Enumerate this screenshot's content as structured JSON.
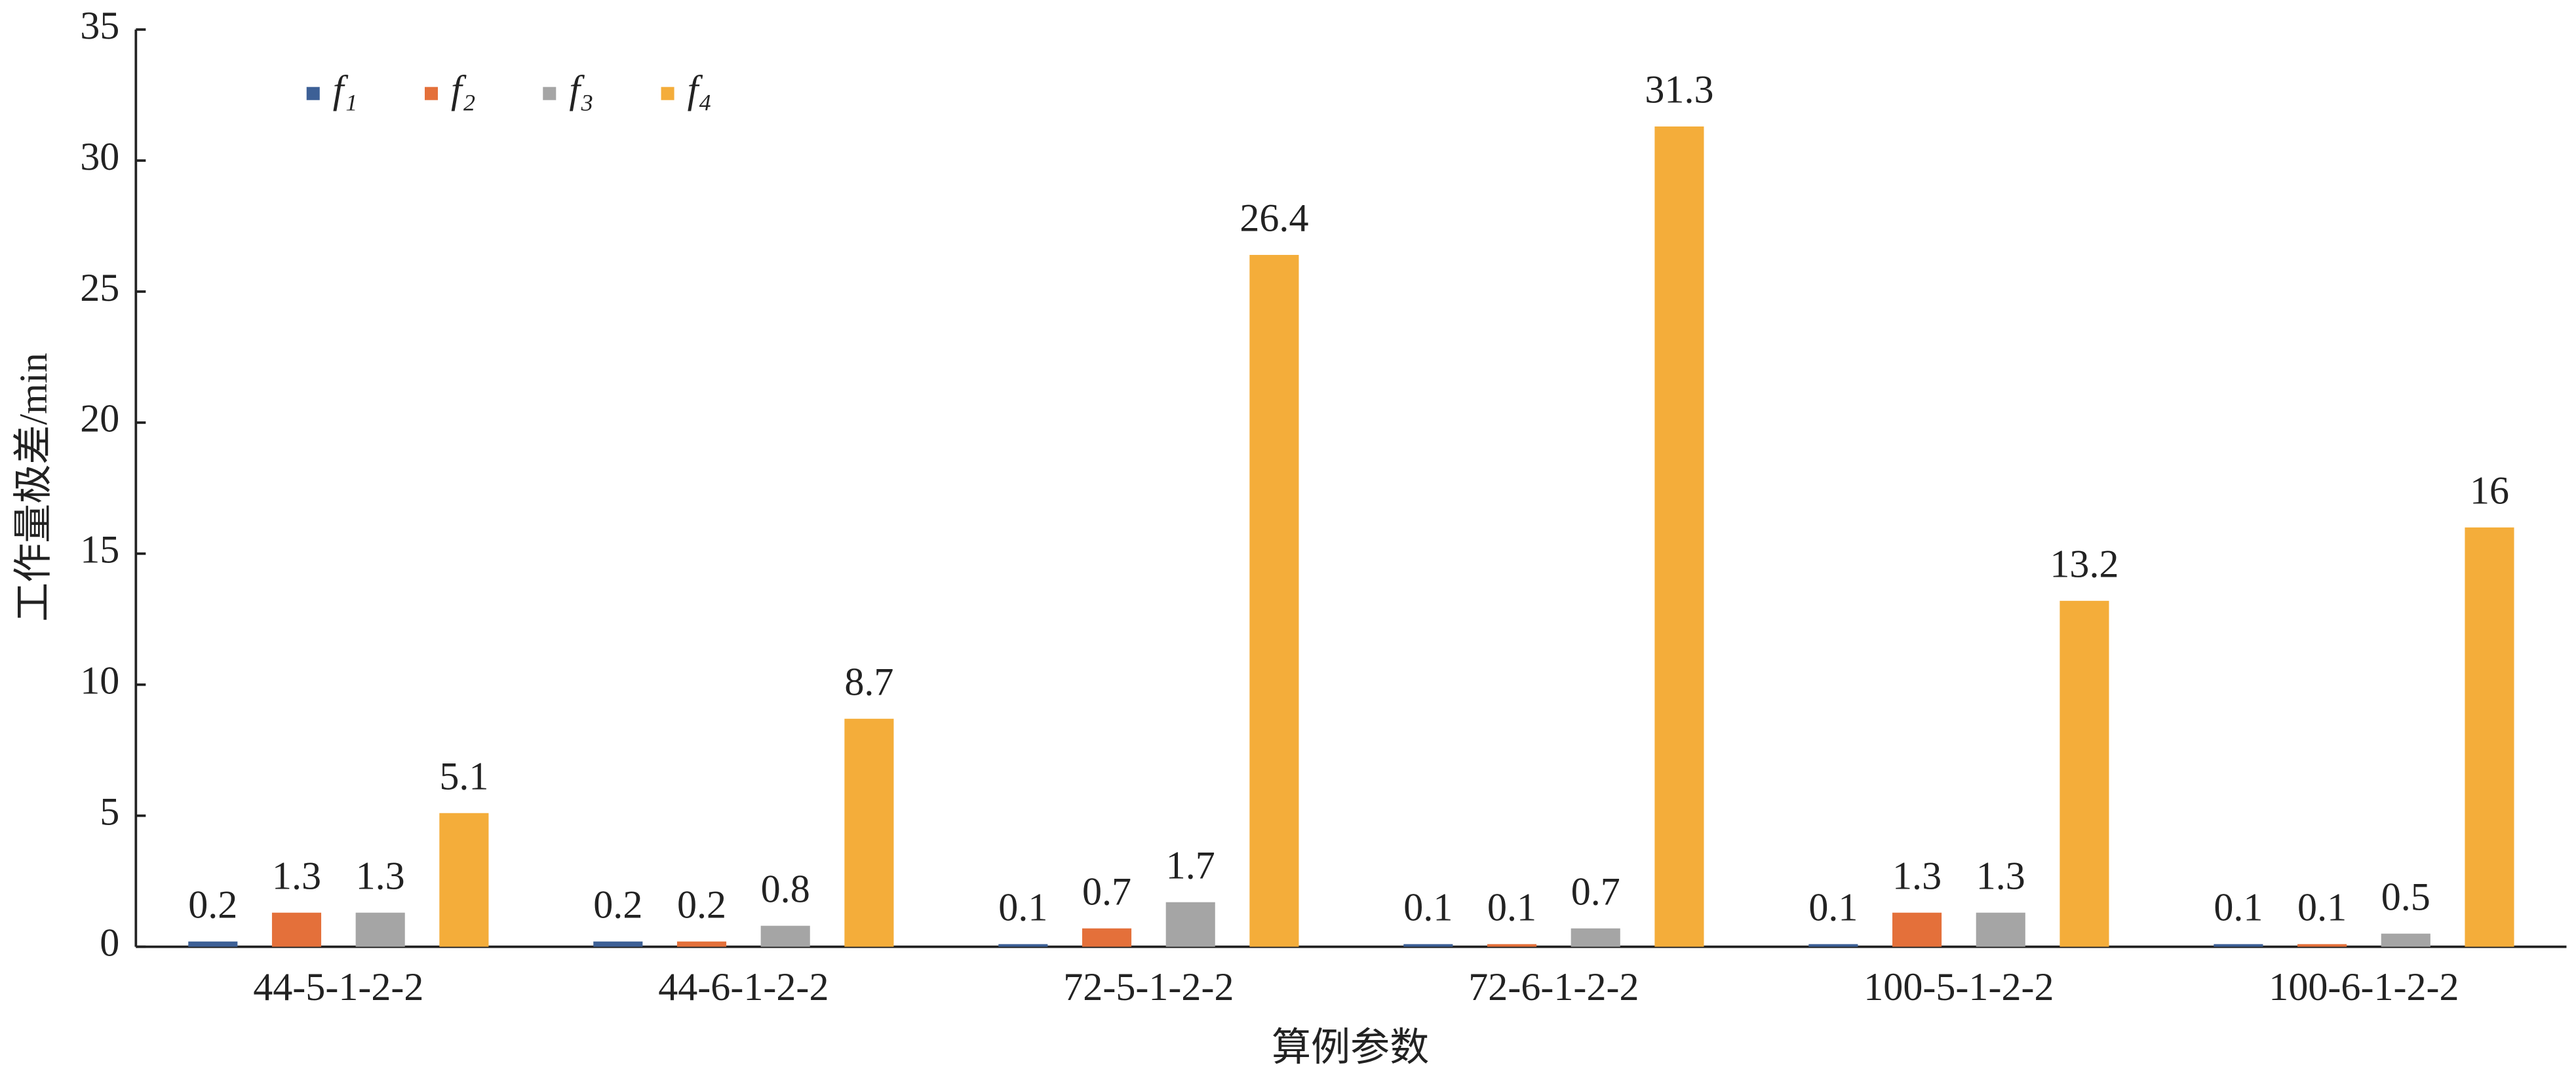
{
  "chart_data": {
    "type": "bar",
    "x_label": "算例参数",
    "y_label": "工作量极差/min",
    "categories": [
      "44-5-1-2-2",
      "44-6-1-2-2",
      "72-5-1-2-2",
      "72-6-1-2-2",
      "100-5-1-2-2",
      "100-6-1-2-2"
    ],
    "series": [
      {
        "name": "f₁",
        "color": "#3d6096",
        "values": [
          0.2,
          0.2,
          0.1,
          0.1,
          0.1,
          0.1
        ]
      },
      {
        "name": "f₂",
        "color": "#e4703a",
        "values": [
          1.3,
          0.2,
          0.7,
          0.1,
          1.3,
          0.1
        ]
      },
      {
        "name": "f₃",
        "color": "#a5a5a5",
        "values": [
          1.3,
          0.8,
          1.7,
          0.7,
          1.3,
          0.5
        ]
      },
      {
        "name": "f₄",
        "color": "#f4ad3a",
        "values": [
          5.1,
          8.7,
          26.4,
          31.3,
          13.2,
          16
        ]
      }
    ],
    "ylim": [
      0,
      35
    ],
    "yticks": [
      0,
      5,
      10,
      15,
      20,
      25,
      30,
      35
    ],
    "legend": "upper left"
  }
}
